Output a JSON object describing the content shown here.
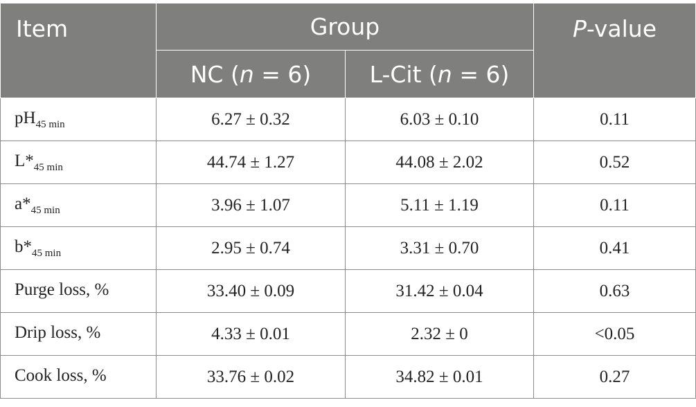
{
  "header": {
    "item": "Item",
    "group": "Group",
    "pvalue_italic": "P",
    "pvalue_rest": "-value",
    "nc_label": "NC (",
    "nc_n": "n",
    "nc_eq": " = 6)",
    "lcit_label": "L-Cit (",
    "lcit_n": "n",
    "lcit_eq": " = 6)"
  },
  "rows": [
    {
      "label": "pH",
      "sub": "45 min",
      "nc": "6.27 ± 0.32",
      "lcit": "6.03 ± 0.10",
      "p": "0.11"
    },
    {
      "label": "L*",
      "sub": "45 min",
      "nc": "44.74 ± 1.27",
      "lcit": "44.08 ± 2.02",
      "p": "0.52"
    },
    {
      "label": "a*",
      "sub": "45 min",
      "nc": "3.96 ± 1.07",
      "lcit": "5.11 ± 1.19",
      "p": "0.11"
    },
    {
      "label": "b*",
      "sub": "45 min",
      "nc": "2.95 ± 0.74",
      "lcit": "3.31 ± 0.70",
      "p": "0.41"
    },
    {
      "label": "Purge loss, %",
      "sub": "",
      "nc": "33.40 ± 0.09",
      "lcit": "31.42 ± 0.04",
      "p": "0.63"
    },
    {
      "label": "Drip loss, %",
      "sub": "",
      "nc": "4.33 ± 0.01",
      "lcit": "2.32 ± 0",
      "p": "<0.05"
    },
    {
      "label": "Cook loss, %",
      "sub": "",
      "nc": "33.76 ± 0.02",
      "lcit": "34.82 ± 0.01",
      "p": "0.27"
    }
  ],
  "colors": {
    "header_bg": "#7f7f7d",
    "header_text": "#ffffff",
    "border": "#8c8c8c"
  }
}
